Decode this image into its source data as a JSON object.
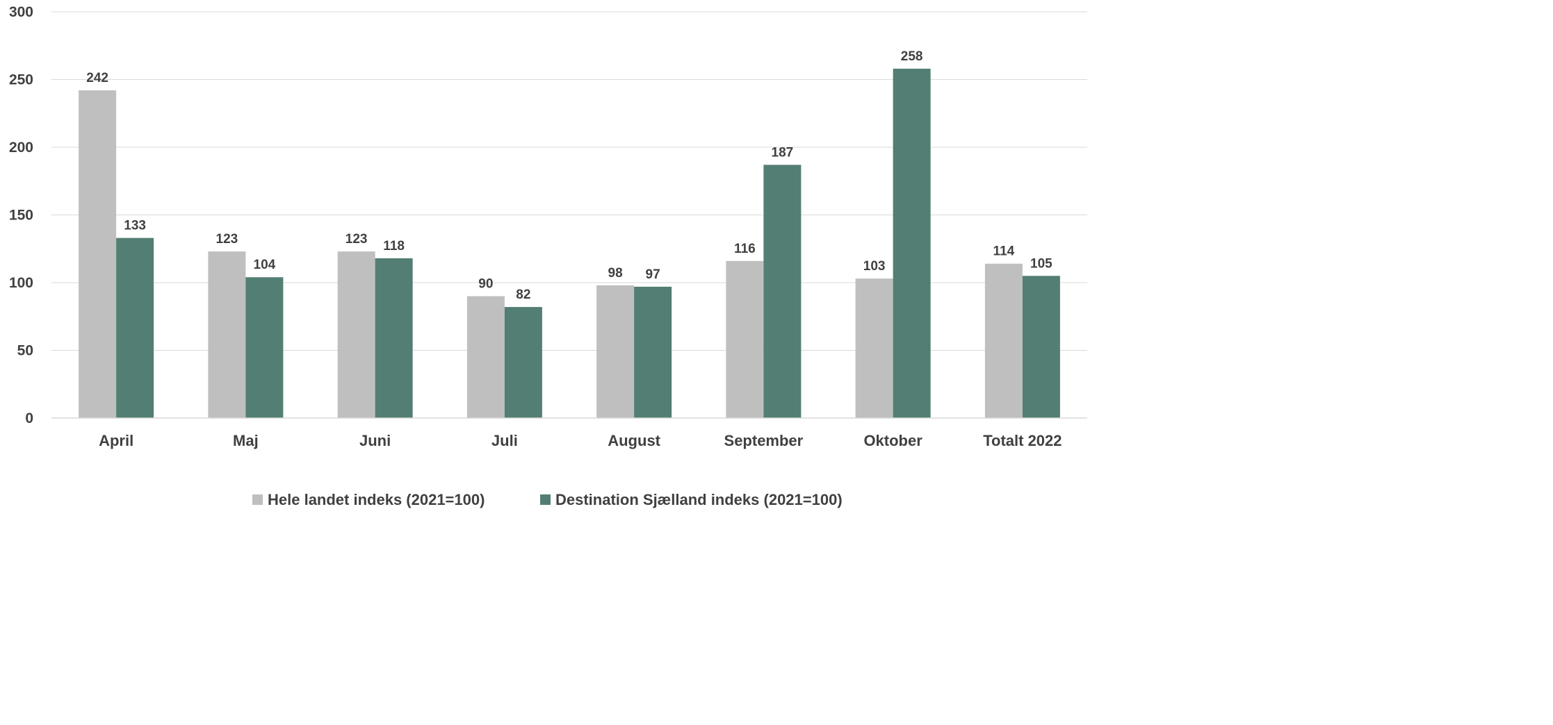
{
  "chart_data": {
    "type": "bar",
    "title": "",
    "xlabel": "",
    "ylabel": "",
    "ylim": [
      0,
      300
    ],
    "yticks": [
      0,
      50,
      100,
      150,
      200,
      250,
      300
    ],
    "grid": true,
    "legend_position": "bottom",
    "categories": [
      "April",
      "Maj",
      "Juni",
      "Juli",
      "August",
      "September",
      "Oktober",
      "Totalt 2022"
    ],
    "series": [
      {
        "name": "Hele landet indeks (2021=100)",
        "color": "#bfbfbf",
        "values": [
          242,
          123,
          123,
          90,
          98,
          116,
          103,
          114
        ]
      },
      {
        "name": "Destination Sjælland indeks (2021=100)",
        "color": "#537e74",
        "values": [
          133,
          104,
          118,
          82,
          97,
          187,
          258,
          105
        ]
      }
    ]
  }
}
